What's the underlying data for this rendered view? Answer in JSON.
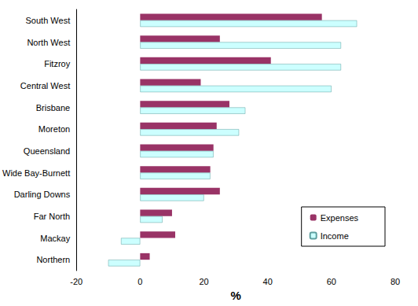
{
  "chart_data": {
    "type": "bar",
    "orientation": "horizontal",
    "categories": [
      "South West",
      "North West",
      "Fitzroy",
      "Central West",
      "Brisbane",
      "Moreton",
      "Queensland",
      "Wide Bay-Burnett",
      "Darling Downs",
      "Far North",
      "Mackay",
      "Northern"
    ],
    "series": [
      {
        "name": "Expenses",
        "color": "#993366",
        "values": [
          57,
          25,
          41,
          19,
          28,
          24,
          23,
          22,
          25,
          10,
          11,
          3
        ]
      },
      {
        "name": "Income",
        "color": "#ccffff",
        "values": [
          68,
          63,
          63,
          60,
          33,
          31,
          23,
          22,
          20,
          7,
          -6,
          -10
        ]
      }
    ],
    "x_label": "%",
    "xlim": [
      -20,
      80
    ],
    "xticks": [
      -20,
      0,
      20,
      40,
      60,
      80
    ],
    "grid": false,
    "legend": "lower right"
  }
}
